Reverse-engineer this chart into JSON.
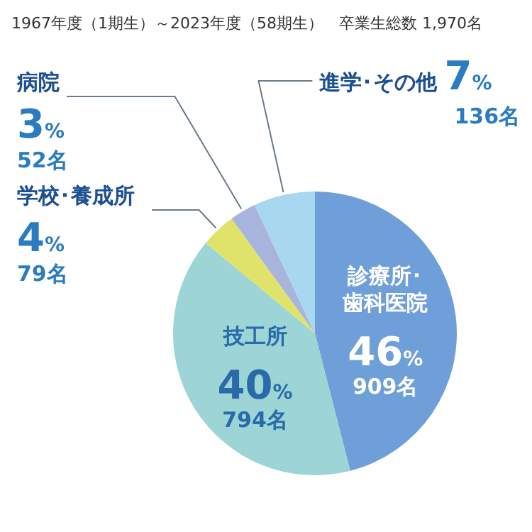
{
  "chart_data": {
    "type": "pie",
    "title": "1967年度（1期生）～2023年度（58期生）　卒業生総数 1,970名",
    "categories": [
      "診療所･歯科医院",
      "技工所",
      "学校･養成所",
      "病院",
      "進学･その他"
    ],
    "values": [
      46,
      40,
      4,
      3,
      7
    ],
    "colors": [
      "#6f9fd8",
      "#9dd4d6",
      "#dfe36a",
      "#a9b4dc",
      "#a8d8f0"
    ],
    "value_labels": [
      "46%",
      "40%",
      "4%",
      "3%",
      "7%"
    ],
    "annotations": [
      {
        "text": "909名",
        "x": "診療所･歯科医院"
      },
      {
        "text": "794名",
        "x": "技工所"
      },
      {
        "text": "79名",
        "x": "学校･養成所"
      },
      {
        "text": "52名",
        "x": "病院"
      },
      {
        "text": "136名",
        "x": "進学･その他"
      }
    ],
    "legend": false
  }
}
